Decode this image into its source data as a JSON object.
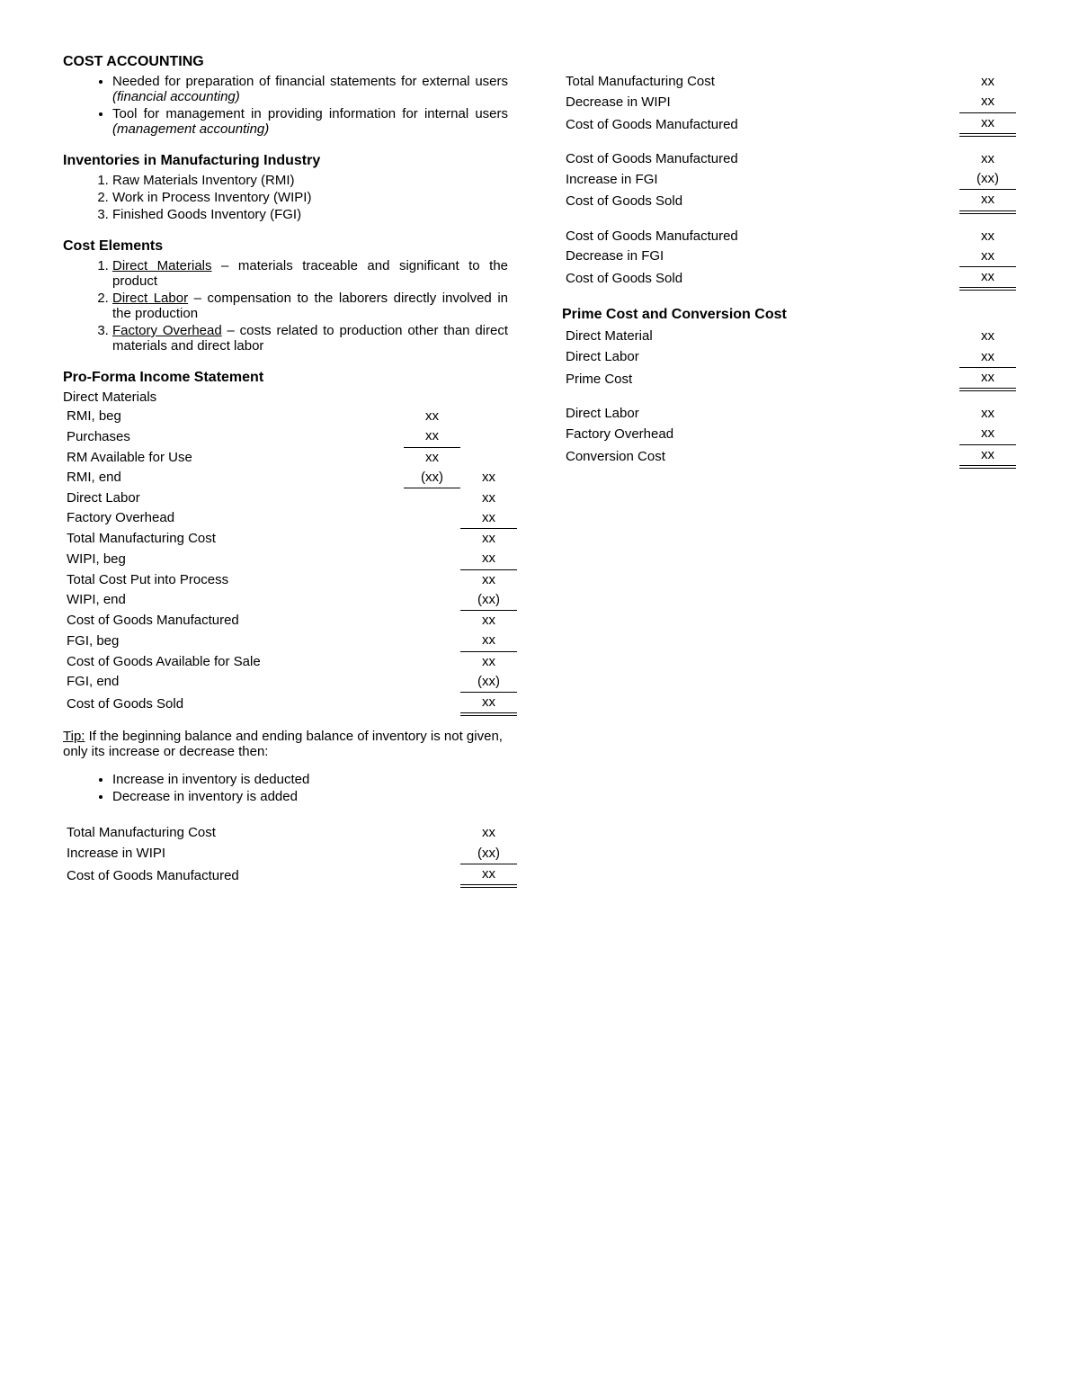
{
  "left": {
    "title": "COST ACCOUNTING",
    "intro_bullets": [
      {
        "text": "Needed for preparation of financial statements for external users ",
        "em": "(financial accounting)"
      },
      {
        "text": "Tool for management in providing information for internal users ",
        "em": "(management accounting)"
      }
    ],
    "inventories": {
      "heading": "Inventories in Manufacturing Industry",
      "items": [
        "Raw Materials Inventory (RMI)",
        "Work in Process Inventory (WIPI)",
        "Finished Goods Inventory (FGI)"
      ]
    },
    "cost_elements": {
      "heading": "Cost Elements",
      "items": [
        {
          "term": "Direct Materials",
          "rest": " – materials traceable and significant to the product"
        },
        {
          "term": "Direct Labor",
          "rest": " – compensation to the laborers directly involved in the production"
        },
        {
          "term": "Factory Overhead",
          "rest": " – costs related to production other than direct materials and direct labor"
        }
      ]
    },
    "proforma": {
      "heading": "Pro-Forma Income Statement",
      "dm_label": "Direct Materials",
      "rows": [
        {
          "label": "RMI, beg",
          "indent": true,
          "c1": "xx"
        },
        {
          "label": "Purchases",
          "indent": true,
          "c1": "xx",
          "c1_bb": true
        },
        {
          "label": "RM Available for Use",
          "indent": true,
          "c1": "xx"
        },
        {
          "label": "RMI, end",
          "indent": true,
          "c1": "(xx)",
          "c1_bb": true,
          "c2": "xx"
        },
        {
          "label": "Direct Labor",
          "c2": "xx"
        },
        {
          "label": "Factory Overhead",
          "c2": "xx",
          "c2_bb": true
        },
        {
          "label": "Total Manufacturing Cost",
          "c2": "xx"
        },
        {
          "label": "WIPI, beg",
          "c2": "xx",
          "c2_bb": true
        },
        {
          "label": "Total Cost Put into Process",
          "c2": "xx"
        },
        {
          "label": "WIPI, end",
          "c2": "(xx)",
          "c2_bb": true
        },
        {
          "label": "Cost of Goods Manufactured",
          "c2": "xx"
        },
        {
          "label": "FGI, beg",
          "c2": "xx",
          "c2_bb": true
        },
        {
          "label": "Cost of Goods Available for Sale",
          "c2": "xx"
        },
        {
          "label": "FGI, end",
          "c2": "(xx)",
          "c2_bb": true
        },
        {
          "label": "Cost of Goods Sold",
          "c2": "xx",
          "c2_dbl": true
        }
      ]
    },
    "tip": {
      "label": "Tip:",
      "text": " If the beginning balance and ending balance of inventory is not given, only its increase or decrease then:",
      "bullets": [
        "Increase in inventory is deducted",
        "Decrease in inventory is added"
      ]
    },
    "calc_inc_wipi": [
      {
        "label": "Total Manufacturing Cost",
        "v": "xx"
      },
      {
        "label": "Increase in WIPI",
        "v": "(xx)",
        "bb": true
      },
      {
        "label": "Cost of Goods Manufactured",
        "v": "xx",
        "dbl": true
      }
    ]
  },
  "right": {
    "calc_dec_wipi": [
      {
        "label": "Total Manufacturing Cost",
        "v": "xx"
      },
      {
        "label": "Decrease in WIPI",
        "v": "xx",
        "bb": true
      },
      {
        "label": "Cost of Goods Manufactured",
        "v": "xx",
        "dbl": true
      }
    ],
    "calc_inc_fgi": [
      {
        "label": "Cost of Goods Manufactured",
        "v": "xx"
      },
      {
        "label": "Increase in FGI",
        "v": "(xx)",
        "bb": true
      },
      {
        "label": "Cost of Goods Sold",
        "v": "xx",
        "dbl": true
      }
    ],
    "calc_dec_fgi": [
      {
        "label": "Cost of Goods Manufactured",
        "v": "xx"
      },
      {
        "label": "Decrease in FGI",
        "v": "xx",
        "bb": true
      },
      {
        "label": "Cost of Goods Sold",
        "v": "xx",
        "dbl": true
      }
    ],
    "prime_heading": "Prime Cost and Conversion Cost",
    "calc_prime": [
      {
        "label": "Direct Material",
        "v": "xx"
      },
      {
        "label": "Direct Labor",
        "v": "xx",
        "bb": true
      },
      {
        "label": "Prime Cost",
        "v": "xx",
        "dbl": true
      }
    ],
    "calc_conv": [
      {
        "label": "Direct Labor",
        "v": "xx"
      },
      {
        "label": "Factory Overhead",
        "v": "xx",
        "bb": true
      },
      {
        "label": "Conversion Cost",
        "v": "xx",
        "dbl": true
      }
    ]
  }
}
